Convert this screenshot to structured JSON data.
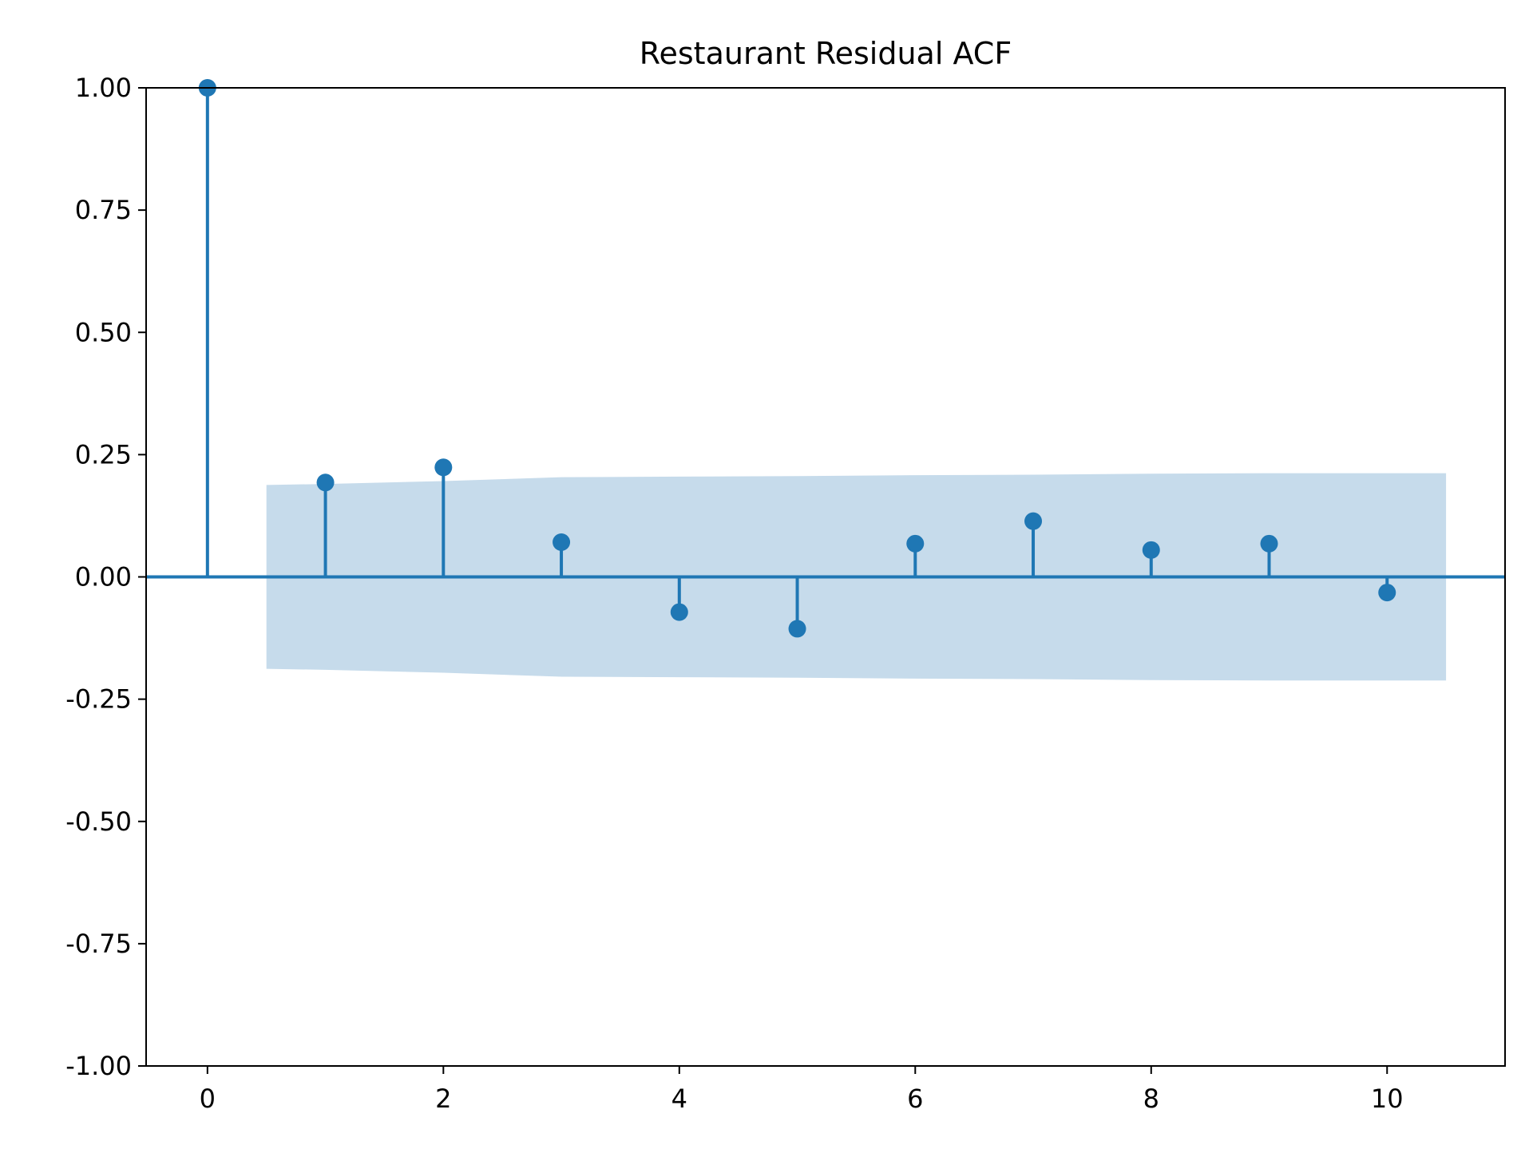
{
  "chart_data": {
    "type": "stem",
    "title": "Restaurant Residual ACF",
    "xlabel": "",
    "ylabel": "",
    "x": [
      0,
      1,
      2,
      3,
      4,
      5,
      6,
      7,
      8,
      9,
      10
    ],
    "values": [
      1.0,
      0.193,
      0.224,
      0.071,
      -0.072,
      -0.106,
      0.068,
      0.114,
      0.055,
      0.068,
      -0.032
    ],
    "confidence_band": {
      "x": [
        0.5,
        1,
        2,
        3,
        4,
        5,
        6,
        7,
        8,
        9,
        10,
        10.5
      ],
      "upper": [
        0.188,
        0.19,
        0.196,
        0.204,
        0.205,
        0.206,
        0.208,
        0.209,
        0.211,
        0.212,
        0.212,
        0.212
      ],
      "lower": [
        -0.188,
        -0.19,
        -0.196,
        -0.204,
        -0.205,
        -0.206,
        -0.208,
        -0.209,
        -0.211,
        -0.212,
        -0.212,
        -0.212
      ]
    },
    "xlim": [
      -0.52,
      11.0
    ],
    "ylim": [
      -1.0,
      1.0
    ],
    "xticks": [
      0,
      2,
      4,
      6,
      8,
      10
    ],
    "xtick_labels": [
      "0",
      "2",
      "4",
      "6",
      "8",
      "10"
    ],
    "yticks": [
      1.0,
      0.75,
      0.5,
      0.25,
      0.0,
      -0.25,
      -0.5,
      -0.75,
      -1.0
    ],
    "ytick_labels": [
      "1.00",
      "0.75",
      "0.50",
      "0.25",
      "0.00",
      "-0.25",
      "-0.50",
      "-0.75",
      "-1.00"
    ],
    "grid": false,
    "colors": {
      "series": "#1f77b4",
      "band": "#c6dbeb",
      "axes": "#000000"
    }
  }
}
